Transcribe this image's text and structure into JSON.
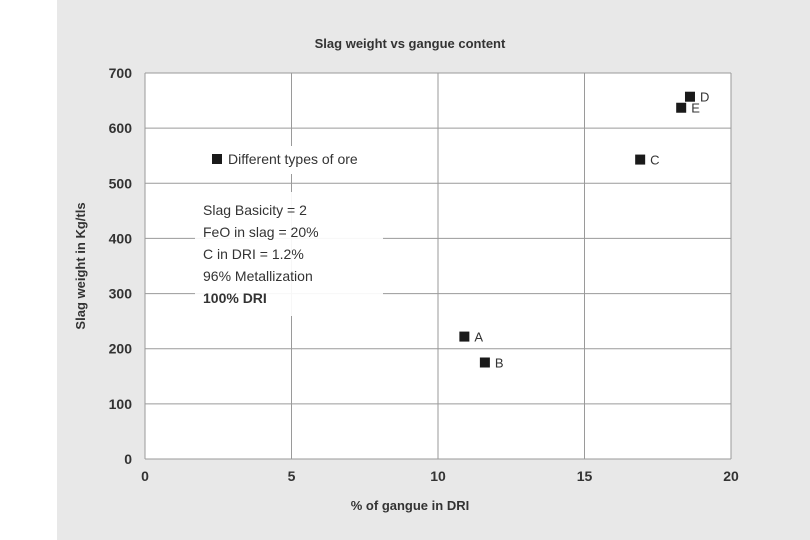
{
  "chart_data": {
    "type": "scatter",
    "title": "Slag weight vs gangue content",
    "xlabel": "% of gangue in DRI",
    "ylabel": "Slag weight in Kg/tls",
    "xlim": [
      0,
      20
    ],
    "ylim": [
      0,
      700
    ],
    "xticks": [
      0,
      5,
      10,
      15,
      20
    ],
    "yticks": [
      0,
      100,
      200,
      300,
      400,
      500,
      600,
      700
    ],
    "grid": true,
    "legend": {
      "placement": "top-left",
      "entries": [
        "Different types of ore"
      ]
    },
    "series": [
      {
        "name": "Different types of ore",
        "points": [
          {
            "label": "A",
            "x": 10.9,
            "y": 222
          },
          {
            "label": "B",
            "x": 11.6,
            "y": 175
          },
          {
            "label": "C",
            "x": 16.9,
            "y": 543
          },
          {
            "label": "D",
            "x": 18.6,
            "y": 657
          },
          {
            "label": "E",
            "x": 18.3,
            "y": 637
          }
        ]
      }
    ],
    "annotation": {
      "lines": [
        "Slag Basicity = 2",
        "FeO in slag = 20%",
        "C in DRI = 1.2%",
        "96% Metallization"
      ],
      "bold_line": "100% DRI"
    }
  }
}
